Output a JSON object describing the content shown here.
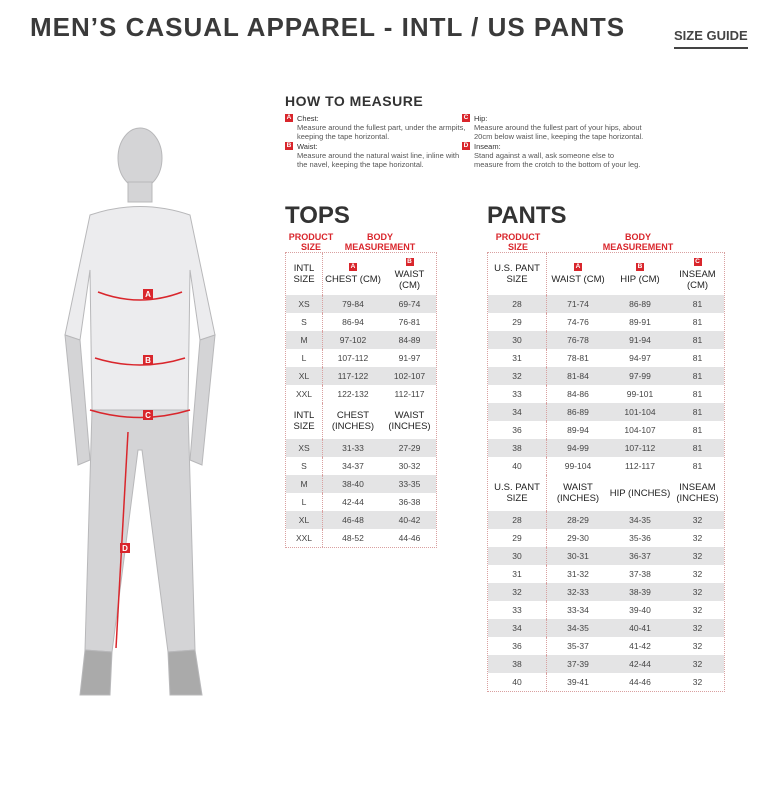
{
  "header": {
    "title": "MEN’S CASUAL APPAREL - INTL / US PANTS",
    "size_guide": "SIZE GUIDE"
  },
  "how_to_measure": {
    "title": "HOW TO MEASURE",
    "items": [
      {
        "badge": "A",
        "label": "Chest:",
        "text": "Measure around the fullest part, under the armpits, keeping the tape horizontal."
      },
      {
        "badge": "B",
        "label": "Waist:",
        "text": "Measure around the natural waist line, inline with the navel, keeping the tape horizontal."
      },
      {
        "badge": "C",
        "label": "Hip:",
        "text": "Measure around the fullest part of your hips, about 20cm below waist line, keeping the tape horizontal."
      },
      {
        "badge": "D",
        "label": "Inseam:",
        "text": "Stand against a wall, ask someone else to measure from the crotch to the bottom of your leg."
      }
    ]
  },
  "figure": {
    "markers": [
      "A",
      "B",
      "C",
      "D"
    ],
    "accent": "#d9262c"
  },
  "tops": {
    "title": "TOPS",
    "product_size": "PRODUCT SIZE",
    "body_measurement": "BODY MEASUREMENT",
    "badges": [
      "A",
      "B"
    ],
    "cm_headers": [
      "INTL SIZE",
      "CHEST (CM)",
      "WAIST (CM)"
    ],
    "cm_rows": [
      [
        "XS",
        "79-84",
        "69-74"
      ],
      [
        "S",
        "86-94",
        "76-81"
      ],
      [
        "M",
        "97-102",
        "84-89"
      ],
      [
        "L",
        "107-112",
        "91-97"
      ],
      [
        "XL",
        "117-122",
        "102-107"
      ],
      [
        "XXL",
        "122-132",
        "112-117"
      ]
    ],
    "in_headers": [
      "INTL SIZE",
      "CHEST (INCHES)",
      "WAIST (INCHES)"
    ],
    "in_rows": [
      [
        "XS",
        "31-33",
        "27-29"
      ],
      [
        "S",
        "34-37",
        "30-32"
      ],
      [
        "M",
        "38-40",
        "33-35"
      ],
      [
        "L",
        "42-44",
        "36-38"
      ],
      [
        "XL",
        "46-48",
        "40-42"
      ],
      [
        "XXL",
        "48-52",
        "44-46"
      ]
    ]
  },
  "pants": {
    "title": "PANTS",
    "product_size": "PRODUCT SIZE",
    "body_measurement": "BODY MEASUREMENT",
    "badges": [
      "A",
      "B",
      "C"
    ],
    "cm_headers": [
      "U.S. PANT SIZE",
      "WAIST (CM)",
      "HIP (CM)",
      "INSEAM (CM)"
    ],
    "cm_rows": [
      [
        "28",
        "71-74",
        "86-89",
        "81"
      ],
      [
        "29",
        "74-76",
        "89-91",
        "81"
      ],
      [
        "30",
        "76-78",
        "91-94",
        "81"
      ],
      [
        "31",
        "78-81",
        "94-97",
        "81"
      ],
      [
        "32",
        "81-84",
        "97-99",
        "81"
      ],
      [
        "33",
        "84-86",
        "99-101",
        "81"
      ],
      [
        "34",
        "86-89",
        "101-104",
        "81"
      ],
      [
        "36",
        "89-94",
        "104-107",
        "81"
      ],
      [
        "38",
        "94-99",
        "107-112",
        "81"
      ],
      [
        "40",
        "99-104",
        "112-117",
        "81"
      ]
    ],
    "in_headers": [
      "U.S. PANT SIZE",
      "WAIST (INCHES)",
      "HIP (INCHES)",
      "INSEAM (INCHES)"
    ],
    "in_rows": [
      [
        "28",
        "28-29",
        "34-35",
        "32"
      ],
      [
        "29",
        "29-30",
        "35-36",
        "32"
      ],
      [
        "30",
        "30-31",
        "36-37",
        "32"
      ],
      [
        "31",
        "31-32",
        "37-38",
        "32"
      ],
      [
        "32",
        "32-33",
        "38-39",
        "32"
      ],
      [
        "33",
        "33-34",
        "39-40",
        "32"
      ],
      [
        "34",
        "34-35",
        "40-41",
        "32"
      ],
      [
        "36",
        "35-37",
        "41-42",
        "32"
      ],
      [
        "38",
        "37-39",
        "42-44",
        "32"
      ],
      [
        "40",
        "39-41",
        "44-46",
        "32"
      ]
    ]
  }
}
